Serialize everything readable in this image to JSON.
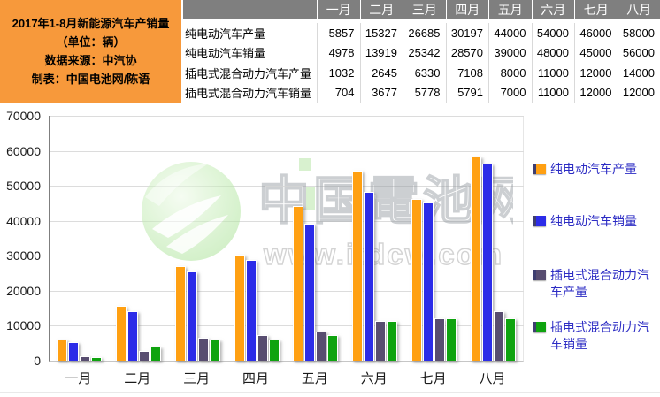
{
  "header": {
    "title_lines": [
      "2017年1-8月新能源汽车产销量",
      "（单位：辆）",
      "数据来源：中汽协",
      "制表：中国电池网/陈语"
    ],
    "bg_color": "#F7993B"
  },
  "table": {
    "months": [
      "一月",
      "二月",
      "三月",
      "四月",
      "五月",
      "六月",
      "七月",
      "八月"
    ],
    "rows": [
      {
        "label": "纯电动汽车产量",
        "values": [
          5857,
          15327,
          26685,
          30197,
          44000,
          54000,
          46000,
          58000
        ]
      },
      {
        "label": "纯电动汽车销量",
        "values": [
          4978,
          13919,
          25342,
          28570,
          39000,
          48000,
          45000,
          56000
        ]
      },
      {
        "label": "插电式混合动力汽车产量",
        "values": [
          1032,
          2645,
          6330,
          7108,
          8000,
          11000,
          12000,
          14000
        ]
      },
      {
        "label": "插电式混合动力汽车销量",
        "values": [
          704,
          3677,
          5778,
          5791,
          7000,
          11000,
          12000,
          12000
        ]
      }
    ],
    "header_bg": "#7F7F7F"
  },
  "chart_data": {
    "type": "bar",
    "title": "",
    "xlabel": "",
    "ylabel": "",
    "categories": [
      "一月",
      "二月",
      "三月",
      "四月",
      "五月",
      "六月",
      "七月",
      "八月"
    ],
    "series": [
      {
        "name": "纯电动汽车产量",
        "color": "#FFA012",
        "values": [
          5857,
          15327,
          26685,
          30197,
          44000,
          54000,
          46000,
          58000
        ]
      },
      {
        "name": "纯电动汽车销量",
        "color": "#2C2CE8",
        "values": [
          4978,
          13919,
          25342,
          28570,
          39000,
          48000,
          45000,
          56000
        ]
      },
      {
        "name": "插电式混合动力汽车产量",
        "color": "#584D70",
        "values": [
          1032,
          2645,
          6330,
          7108,
          8000,
          11000,
          12000,
          14000
        ]
      },
      {
        "name": "插电式混合动力汽车销量",
        "color": "#0FA30F",
        "values": [
          704,
          3677,
          5778,
          5791,
          7000,
          11000,
          12000,
          12000
        ]
      }
    ],
    "ylim": [
      0,
      70000
    ],
    "yticks": [
      0,
      10000,
      20000,
      30000,
      40000,
      50000,
      60000,
      70000
    ],
    "grid": true,
    "legend_position": "right",
    "legend_text_color": "#2D2DC4"
  },
  "watermark": {
    "brand": "中国电池网",
    "url": "www.itdcw.com"
  }
}
